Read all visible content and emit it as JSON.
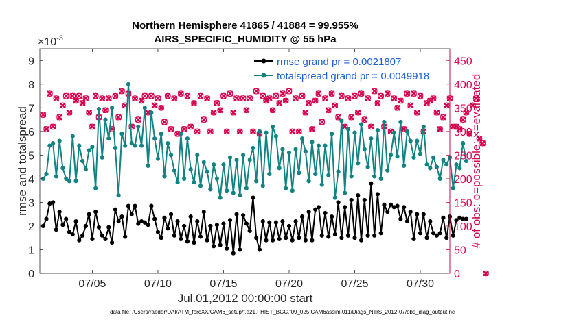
{
  "chart_data": {
    "type": "line",
    "title": "Northern Hemisphere 41865 / 41884 = 99.955%",
    "subtitle": "AIRS_SPECIFIC_HUMIDITY @ 55 hPa",
    "xlabel": "Jul.01,2012 00:00:00 start",
    "ylabel": "rmse and totalspread",
    "y2label": "# of obs: o=possible; ×=evaluated",
    "y_exponent_label": "×10",
    "y_exponent": "-3",
    "ylim": [
      0,
      9.5
    ],
    "y2lim": [
      0,
      475
    ],
    "xlim": [
      1.0,
      32.25
    ],
    "x_ticks": [
      5,
      10,
      15,
      20,
      25,
      30
    ],
    "x_tick_labels": [
      "07/05",
      "07/10",
      "07/15",
      "07/20",
      "07/25",
      "07/30"
    ],
    "y_ticks": [
      "0",
      "1",
      "2",
      "3",
      "4",
      "5",
      "6",
      "7",
      "8",
      "9"
    ],
    "y2_ticks": [
      "0",
      "50",
      "100",
      "150",
      "200",
      "250",
      "300",
      "350",
      "400",
      "450"
    ],
    "legend_position": "top-right",
    "footer": "data file: /Users/raeder/DAI/ATM_forcXX/CAM6_setup/f.e21.FHIST_BGC.f09_025.CAM6assim.011/Diags_NTrS_2012-07/obs_diag_output.nc",
    "series": [
      {
        "name": "rmse grand pr = 0.0021807",
        "color": "#000000",
        "marker": "circle",
        "values": [
          2.0,
          2.3,
          2.95,
          3.0,
          1.85,
          2.6,
          2.05,
          2.3,
          1.75,
          1.65,
          2.2,
          1.4,
          1.6,
          2.0,
          2.5,
          1.45,
          2.6,
          1.95,
          1.6,
          1.45,
          1.95,
          1.3,
          2.7,
          2.2,
          2.4,
          1.55,
          2.85,
          2.5,
          2.85,
          2.1,
          2.2,
          2.15,
          2.05,
          2.85,
          2.3,
          1.75,
          1.5,
          2.35,
          1.9,
          2.5,
          1.6,
          2.2,
          1.45,
          2.0,
          1.35,
          2.4,
          1.3,
          2.2,
          1.55,
          2.6,
          1.4,
          2.0,
          1.15,
          2.05,
          1.2,
          2.1,
          1.05,
          2.25,
          0.85,
          2.5,
          1.0,
          2.45,
          2.1,
          1.8,
          3.2,
          1.5,
          1.0,
          2.2,
          1.4,
          2.15,
          1.4,
          2.15,
          1.45,
          2.2,
          1.5,
          2.0,
          1.4,
          2.2,
          1.5,
          2.4,
          1.4,
          2.6,
          1.4,
          2.7,
          2.8,
          1.6,
          2.55,
          1.55,
          2.4,
          1.65,
          3.0,
          1.5,
          2.8,
          1.6,
          3.1,
          1.5,
          3.3,
          1.4,
          3.1,
          1.6,
          3.8,
          1.6,
          3.35,
          1.7,
          2.9,
          2.6,
          2.9,
          2.8,
          2.85,
          2.3,
          2.8,
          2.2,
          2.6,
          1.45,
          2.5,
          1.7,
          2.5,
          1.5,
          2.2,
          1.7,
          1.6,
          1.7,
          2.35,
          1.5,
          2.4,
          1.6,
          2.25,
          2.35,
          2.3,
          2.3
        ]
      },
      {
        "name": "totalspread grand pr = 0.0049918",
        "color": "#128282",
        "marker": "circle",
        "values": [
          4.0,
          4.2,
          5.4,
          5.5,
          4.1,
          5.6,
          4.45,
          4.0,
          3.9,
          5.8,
          3.9,
          5.4,
          4.75,
          4.4,
          5.2,
          5.35,
          3.6,
          6.95,
          4.9,
          6.5,
          5.7,
          7.0,
          5.3,
          3.3,
          5.9,
          5.4,
          8.0,
          5.5,
          5.4,
          6.2,
          5.4,
          7.0,
          4.55,
          6.8,
          5.7,
          4.85,
          5.9,
          4.1,
          5.5,
          5.0,
          4.35,
          3.85,
          5.9,
          4.0,
          5.7,
          4.4,
          3.85,
          5.0,
          3.7,
          4.7,
          4.3,
          3.55,
          4.6,
          4.0,
          3.2,
          4.6,
          3.5,
          4.9,
          3.4,
          4.8,
          3.3,
          5.0,
          3.6,
          4.8,
          5.3,
          3.9,
          6.0,
          3.7,
          5.95,
          4.2,
          6.2,
          5.8,
          4.45,
          5.25,
          3.6,
          5.1,
          3.5,
          5.25,
          4.25,
          5.7,
          5.15,
          3.9,
          5.55,
          4.2,
          5.4,
          3.75,
          5.4,
          4.15,
          5.9,
          3.2,
          4.3,
          6.45,
          3.4,
          6.1,
          4.1,
          5.95,
          4.65,
          6.3,
          5.25,
          4.5,
          5.7,
          4.1,
          6.05,
          4.0,
          6.4,
          4.35,
          5.0,
          5.95,
          4.95,
          6.4,
          4.55,
          6.0,
          5.6,
          4.9,
          5.6,
          5.05,
          6.2,
          4.6,
          4.45,
          4.9,
          4.5,
          4.0,
          4.8,
          4.6,
          4.9,
          3.6,
          4.6,
          4.45,
          5.5,
          4.75
        ]
      }
    ],
    "obs_series": [
      {
        "name": "possible",
        "color": "#d6004f",
        "marker": "o",
        "values": [
          335,
          305,
          380,
          310,
          370,
          330,
          355,
          375,
          340,
          375,
          365,
          375,
          360,
          370,
          340,
          310,
          375,
          330,
          370,
          345,
          370,
          305,
          375,
          330,
          385,
          355,
          380,
          310,
          370,
          325,
          365,
          375,
          340,
          375,
          355,
          370,
          350,
          320,
          375,
          305,
          370,
          295,
          380,
          305,
          375,
          310,
          360,
          300,
          375,
          325,
          370,
          300,
          340,
          360,
          345,
          375,
          300,
          380,
          340,
          370,
          300,
          370,
          345,
          370,
          300,
          385,
          295,
          375,
          365,
          370,
          345,
          375,
          360,
          380,
          365,
          385,
          300,
          370,
          300,
          375,
          340,
          360,
          305,
          365,
          380,
          320,
          370,
          345,
          380,
          355,
          330,
          375,
          310,
          370,
          330,
          375,
          340,
          380,
          325,
          370,
          310,
          385,
          360,
          375,
          310,
          380,
          300,
          370,
          350,
          365,
          305,
          380,
          355,
          380,
          340,
          375,
          300,
          360,
          365,
          370,
          340,
          305,
          330,
          355,
          370,
          310,
          310,
          305,
          325,
          340,
          295,
          355,
          370,
          285,
          275,
          0
        ]
      },
      {
        "name": "evaluated",
        "color": "#d6004f",
        "marker": "x",
        "values": [
          335,
          305,
          380,
          310,
          370,
          330,
          355,
          375,
          340,
          375,
          365,
          375,
          360,
          370,
          340,
          310,
          375,
          330,
          370,
          345,
          370,
          305,
          375,
          330,
          385,
          355,
          380,
          310,
          370,
          325,
          365,
          375,
          340,
          375,
          355,
          370,
          350,
          320,
          375,
          305,
          370,
          295,
          380,
          305,
          375,
          310,
          360,
          300,
          375,
          325,
          370,
          300,
          340,
          360,
          345,
          375,
          300,
          380,
          340,
          370,
          300,
          370,
          345,
          370,
          300,
          385,
          295,
          375,
          365,
          370,
          345,
          375,
          360,
          380,
          365,
          385,
          300,
          370,
          300,
          375,
          340,
          360,
          305,
          365,
          380,
          320,
          370,
          345,
          380,
          355,
          330,
          375,
          310,
          370,
          330,
          375,
          340,
          380,
          325,
          370,
          310,
          385,
          360,
          375,
          310,
          380,
          300,
          370,
          350,
          365,
          305,
          380,
          355,
          380,
          340,
          375,
          300,
          360,
          365,
          370,
          340,
          305,
          330,
          355,
          370,
          310,
          310,
          305,
          325,
          340,
          295,
          355,
          370,
          285,
          275,
          0
        ]
      }
    ]
  }
}
